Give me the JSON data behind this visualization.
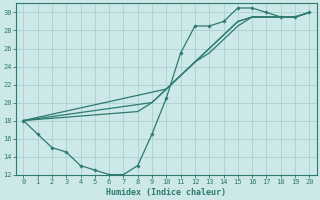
{
  "xlabel": "Humidex (Indice chaleur)",
  "xlim": [
    -0.5,
    20.5
  ],
  "ylim": [
    12,
    31
  ],
  "xticks": [
    0,
    1,
    2,
    3,
    4,
    5,
    6,
    7,
    8,
    9,
    10,
    11,
    12,
    13,
    14,
    15,
    16,
    17,
    18,
    19,
    20
  ],
  "yticks": [
    12,
    14,
    16,
    18,
    20,
    22,
    24,
    26,
    28,
    30
  ],
  "bg_color": "#cce8e8",
  "grid_color": "#aed4d4",
  "line_color": "#2d7a6e",
  "curve_x": [
    0,
    1,
    2,
    3,
    4,
    5,
    6,
    7,
    8,
    9,
    10,
    11,
    12,
    13,
    14,
    15,
    16,
    17,
    18,
    19,
    20
  ],
  "curve_y": [
    18,
    16.5,
    15.0,
    14.5,
    13.0,
    12.5,
    12.0,
    12.0,
    13.0,
    16.5,
    20.5,
    25.5,
    28.5,
    28.5,
    29.0,
    30.5,
    30.5,
    30.0,
    29.5,
    29.5,
    30.0
  ],
  "line2_x": [
    0,
    10,
    11,
    12,
    13,
    14,
    15,
    16,
    17,
    18,
    19,
    20
  ],
  "line2_y": [
    18,
    21.5,
    23.0,
    24.5,
    25.5,
    27.0,
    28.5,
    29.5,
    29.5,
    29.5,
    29.5,
    30.0
  ],
  "line3_x": [
    0,
    9,
    10,
    11,
    12,
    13,
    14,
    15,
    16,
    17,
    18,
    19,
    20
  ],
  "line3_y": [
    18,
    20.0,
    21.5,
    23.0,
    24.5,
    26.0,
    27.5,
    29.0,
    29.5,
    29.5,
    29.5,
    29.5,
    30.0
  ],
  "line4_x": [
    0,
    8,
    9,
    10,
    11,
    12,
    13,
    14,
    15,
    16,
    17,
    18,
    19,
    20
  ],
  "line4_y": [
    18,
    19.0,
    20.0,
    21.5,
    23.0,
    24.5,
    26.0,
    27.5,
    29.0,
    29.5,
    29.5,
    29.5,
    29.5,
    30.0
  ]
}
